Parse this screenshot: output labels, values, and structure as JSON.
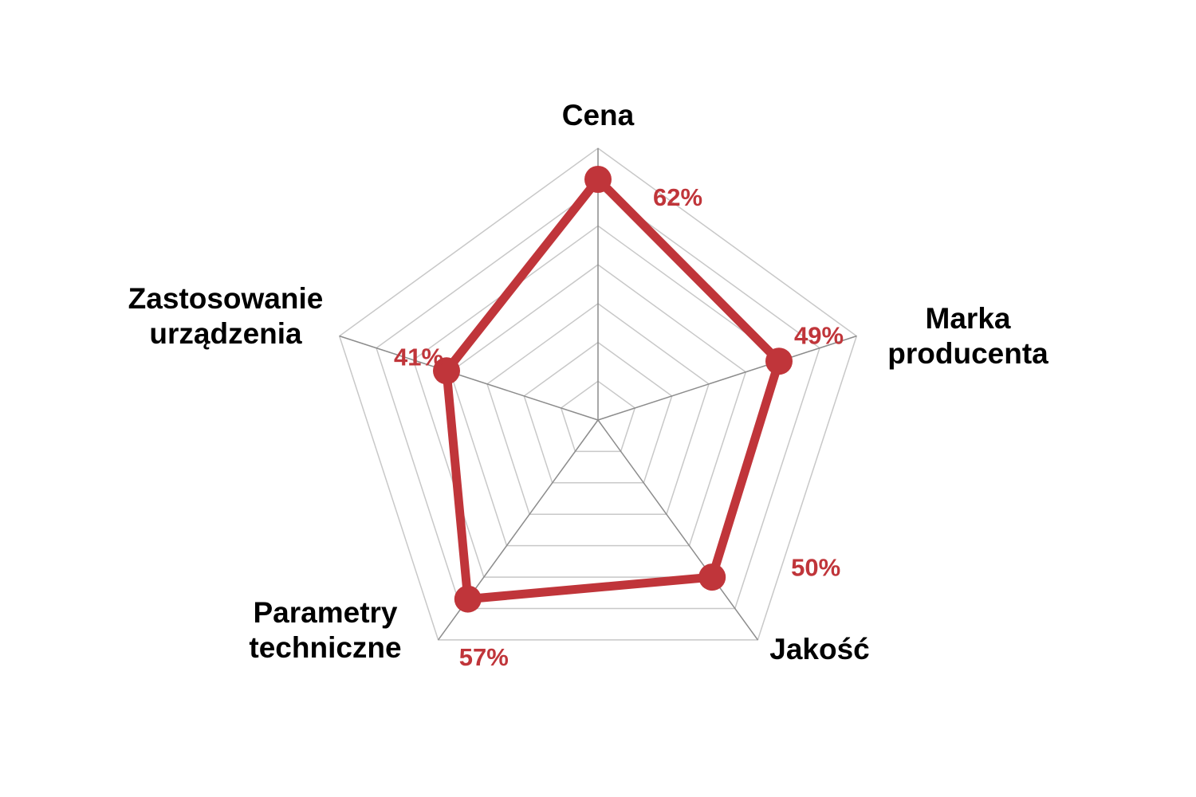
{
  "chart_data": {
    "type": "radar",
    "categories": [
      [
        "Cena"
      ],
      [
        "Marka",
        "producenta"
      ],
      [
        "Jakość"
      ],
      [
        "Parametry",
        "techniczne"
      ],
      [
        "Zastosowanie",
        "urządzenia"
      ]
    ],
    "series": [
      {
        "values": [
          62,
          49,
          50,
          57,
          41
        ],
        "data_labels": [
          "62%",
          "49%",
          "50%",
          "57%",
          "41%"
        ],
        "color": "#c0353a"
      }
    ],
    "rlim": [
      0,
      70
    ],
    "grid_levels": 7,
    "grid": true,
    "legend": "none"
  }
}
